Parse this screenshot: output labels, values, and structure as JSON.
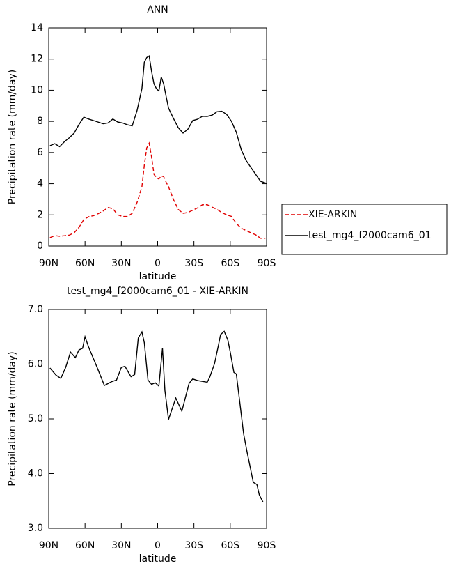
{
  "chart_data": [
    {
      "type": "line",
      "title": "ANN",
      "xlabel": "latitude",
      "ylabel": "Precipitation rate (mm/day)",
      "x": [
        89,
        85,
        81,
        77,
        73,
        69,
        65,
        61,
        57,
        53,
        49,
        45,
        41,
        37,
        33,
        29,
        25,
        21,
        17,
        13,
        11,
        9,
        7,
        5,
        3,
        1,
        -1,
        -3,
        -5,
        -7,
        -9,
        -13,
        -17,
        -21,
        -25,
        -29,
        -33,
        -37,
        -41,
        -45,
        -49,
        -53,
        -57,
        -61,
        -65,
        -69,
        -73,
        -77,
        -81,
        -85,
        -89
      ],
      "series": [
        {
          "name": "XIE-ARKIN",
          "color": "#e00000",
          "dashed": true,
          "values": [
            0.54,
            0.67,
            0.63,
            0.66,
            0.7,
            0.85,
            1.2,
            1.7,
            1.88,
            1.95,
            2.08,
            2.25,
            2.47,
            2.4,
            2.0,
            1.9,
            1.9,
            2.1,
            2.8,
            3.8,
            5.2,
            6.3,
            6.6,
            5.7,
            4.6,
            4.4,
            4.3,
            4.5,
            4.45,
            4.1,
            3.8,
            3.0,
            2.35,
            2.1,
            2.15,
            2.3,
            2.45,
            2.65,
            2.65,
            2.5,
            2.35,
            2.15,
            2.0,
            1.9,
            1.45,
            1.15,
            1.0,
            0.85,
            0.72,
            0.5,
            0.5
          ]
        },
        {
          "name": "test_mg4_f2000cam6_01",
          "color": "#000000",
          "dashed": false,
          "values": [
            6.44,
            6.57,
            6.38,
            6.7,
            6.95,
            7.25,
            7.8,
            8.27,
            8.15,
            8.05,
            7.95,
            7.85,
            7.9,
            8.15,
            7.96,
            7.9,
            7.78,
            7.72,
            8.7,
            10.1,
            11.8,
            12.1,
            12.2,
            11.2,
            10.4,
            10.1,
            9.95,
            10.85,
            10.4,
            9.6,
            8.85,
            8.2,
            7.6,
            7.25,
            7.5,
            8.05,
            8.14,
            8.33,
            8.32,
            8.4,
            8.62,
            8.65,
            8.45,
            8.0,
            7.3,
            6.2,
            5.5,
            5.05,
            4.6,
            4.16,
            4.05
          ]
        }
      ],
      "xlim": [
        90,
        -90
      ],
      "xticks": [
        {
          "value": 90,
          "label": "90N"
        },
        {
          "value": 60,
          "label": "60N"
        },
        {
          "value": 30,
          "label": "30N"
        },
        0,
        {
          "value": -30,
          "label": "30S"
        },
        {
          "value": -60,
          "label": "60S"
        },
        {
          "value": -90,
          "label": "90S"
        }
      ],
      "ylim": [
        0,
        14
      ],
      "yticks": [
        0,
        2,
        4,
        6,
        8,
        10,
        12,
        14
      ],
      "legend": "right"
    },
    {
      "type": "line",
      "title": "test_mg4_f2000cam6_01 - XIE-ARKIN",
      "xlabel": "latitude",
      "ylabel": "Precipitation rate (mm/day)",
      "x": [
        89,
        84,
        80,
        76,
        72,
        68,
        65,
        62,
        60,
        57,
        50,
        44,
        38,
        34,
        30,
        27,
        22,
        19,
        16,
        13,
        11,
        8,
        5,
        2,
        -1,
        -4,
        -6,
        -9,
        -15,
        -20,
        -26,
        -29,
        -33,
        -41,
        -43,
        -47,
        -50,
        -52,
        -55,
        -58,
        -60,
        -63,
        -65,
        -68,
        -71,
        -74,
        -77,
        -79,
        -82,
        -84,
        -87
      ],
      "values": [
        5.93,
        5.8,
        5.74,
        5.94,
        6.22,
        6.12,
        6.26,
        6.29,
        6.5,
        6.31,
        5.94,
        5.61,
        5.68,
        5.71,
        5.94,
        5.96,
        5.77,
        5.81,
        6.48,
        6.59,
        6.39,
        5.71,
        5.63,
        5.66,
        5.6,
        6.29,
        5.52,
        4.99,
        5.38,
        5.14,
        5.65,
        5.73,
        5.7,
        5.67,
        5.76,
        6.01,
        6.32,
        6.54,
        6.6,
        6.44,
        6.22,
        5.85,
        5.82,
        5.28,
        4.73,
        4.38,
        4.06,
        3.84,
        3.8,
        3.61,
        3.48
      ],
      "color": "#000000",
      "xlim": [
        90,
        -90
      ],
      "xticks": [
        {
          "value": 90,
          "label": "90N"
        },
        {
          "value": 60,
          "label": "60N"
        },
        {
          "value": 30,
          "label": "30N"
        },
        0,
        {
          "value": -30,
          "label": "30S"
        },
        {
          "value": -60,
          "label": "60S"
        },
        {
          "value": -90,
          "label": "90S"
        }
      ],
      "ylim": [
        3,
        7
      ],
      "yticks": [
        {
          "value": 3,
          "label": "3.0"
        },
        {
          "value": 4,
          "label": "4.0"
        },
        {
          "value": 5,
          "label": "5.0"
        },
        {
          "value": 6,
          "label": "6.0"
        },
        {
          "value": 7,
          "label": "7.0"
        }
      ]
    }
  ]
}
